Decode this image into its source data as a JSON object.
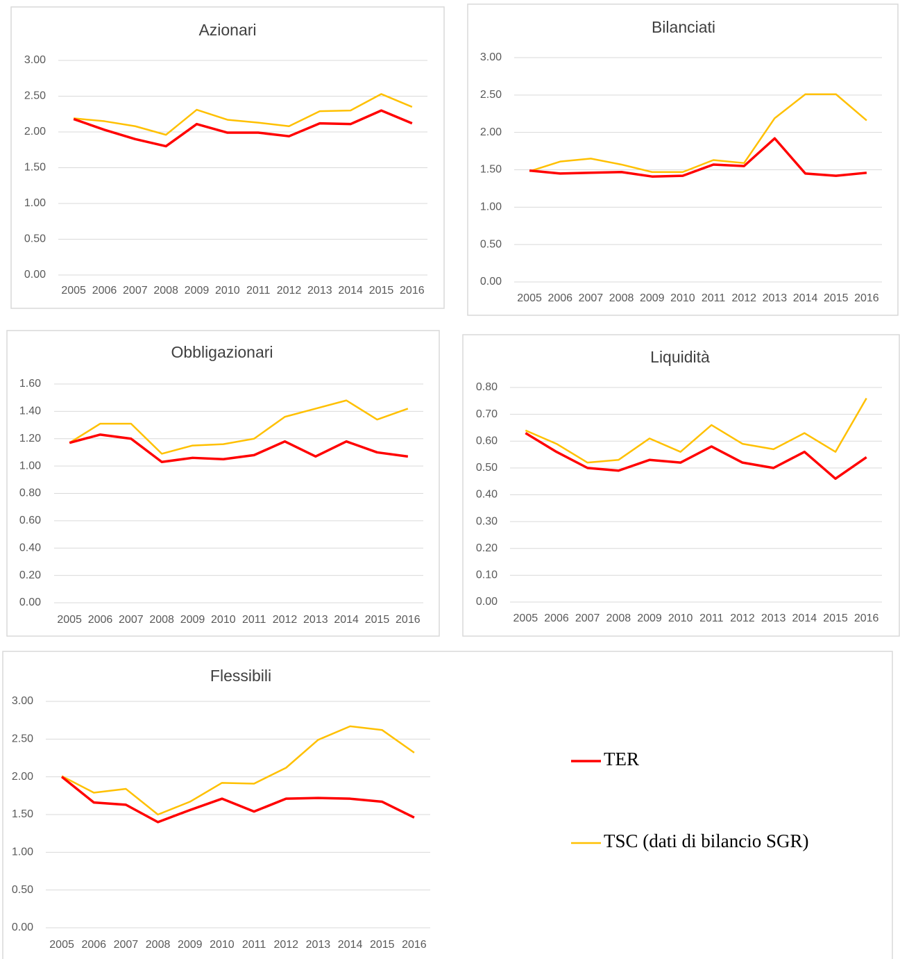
{
  "chart_data": [
    {
      "type": "line",
      "title": "Azionari",
      "categories": [
        "2005",
        "2006",
        "2007",
        "2008",
        "2009",
        "2010",
        "2011",
        "2012",
        "2013",
        "2014",
        "2015",
        "2016"
      ],
      "series": [
        {
          "color": "#ff0000",
          "values": [
            2.18,
            2.03,
            1.9,
            1.8,
            2.11,
            1.99,
            1.99,
            1.94,
            2.12,
            2.11,
            2.3,
            2.12
          ]
        },
        {
          "color": "#ffc000",
          "values": [
            2.19,
            2.15,
            2.08,
            1.96,
            2.31,
            2.17,
            2.13,
            2.08,
            2.29,
            2.3,
            2.53,
            2.35
          ]
        }
      ],
      "ylim": [
        0,
        3
      ],
      "yticks": [
        {
          "value": 0,
          "label": "0.00"
        },
        {
          "value": 0.5,
          "label": "0.50"
        },
        {
          "value": 1,
          "label": "1.00"
        },
        {
          "value": 1.5,
          "label": "1.50"
        },
        {
          "value": 2,
          "label": "2.00"
        },
        {
          "value": 2.5,
          "label": "2.50"
        },
        {
          "value": 3,
          "label": "3.00"
        }
      ],
      "grid": true
    },
    {
      "type": "line",
      "title": "Bilanciati",
      "categories": [
        "2005",
        "2006",
        "2007",
        "2008",
        "2009",
        "2010",
        "2011",
        "2012",
        "2013",
        "2014",
        "2015",
        "2016"
      ],
      "series": [
        {
          "color": "#ff0000",
          "values": [
            1.49,
            1.45,
            1.46,
            1.47,
            1.41,
            1.42,
            1.57,
            1.55,
            1.92,
            1.45,
            1.42,
            1.46
          ]
        },
        {
          "color": "#ffc000",
          "values": [
            1.48,
            1.61,
            1.65,
            1.57,
            1.47,
            1.47,
            1.63,
            1.59,
            2.19,
            2.51,
            2.51,
            2.16
          ]
        }
      ],
      "ylim": [
        0,
        3
      ],
      "yticks": [
        {
          "value": 0,
          "label": "0.00"
        },
        {
          "value": 0.5,
          "label": "0.50"
        },
        {
          "value": 1,
          "label": "1.00"
        },
        {
          "value": 1.5,
          "label": "1.50"
        },
        {
          "value": 2,
          "label": "2.00"
        },
        {
          "value": 2.5,
          "label": "2.50"
        },
        {
          "value": 3,
          "label": "3.00"
        }
      ],
      "grid": true
    },
    {
      "type": "line",
      "title": "Obbligazionari",
      "categories": [
        "2005",
        "2006",
        "2007",
        "2008",
        "2009",
        "2010",
        "2011",
        "2012",
        "2013",
        "2014",
        "2015",
        "2016"
      ],
      "series": [
        {
          "color": "#ff0000",
          "values": [
            1.17,
            1.23,
            1.2,
            1.03,
            1.06,
            1.05,
            1.08,
            1.18,
            1.07,
            1.18,
            1.1,
            1.07
          ]
        },
        {
          "color": "#ffc000",
          "values": [
            1.17,
            1.31,
            1.31,
            1.09,
            1.15,
            1.16,
            1.2,
            1.36,
            1.42,
            1.48,
            1.34,
            1.42
          ]
        }
      ],
      "ylim": [
        0,
        1.6
      ],
      "yticks": [
        {
          "value": 0,
          "label": "0.00"
        },
        {
          "value": 0.2,
          "label": "0.20"
        },
        {
          "value": 0.4,
          "label": "0.40"
        },
        {
          "value": 0.6,
          "label": "0.60"
        },
        {
          "value": 0.8,
          "label": "0.80"
        },
        {
          "value": 1,
          "label": "1.00"
        },
        {
          "value": 1.2,
          "label": "1.20"
        },
        {
          "value": 1.4,
          "label": "1.40"
        },
        {
          "value": 1.6,
          "label": "1.60"
        }
      ],
      "grid": true
    },
    {
      "type": "line",
      "title": "Liquidità",
      "categories": [
        "2005",
        "2006",
        "2007",
        "2008",
        "2009",
        "2010",
        "2011",
        "2012",
        "2013",
        "2014",
        "2015",
        "2016"
      ],
      "series": [
        {
          "color": "#ff0000",
          "values": [
            0.63,
            0.56,
            0.5,
            0.49,
            0.53,
            0.52,
            0.58,
            0.52,
            0.5,
            0.56,
            0.46,
            0.54
          ]
        },
        {
          "color": "#ffc000",
          "values": [
            0.64,
            0.59,
            0.52,
            0.53,
            0.61,
            0.56,
            0.66,
            0.59,
            0.57,
            0.63,
            0.56,
            0.76
          ]
        }
      ],
      "ylim": [
        0,
        0.8
      ],
      "yticks": [
        {
          "value": 0,
          "label": "0.00"
        },
        {
          "value": 0.1,
          "label": "0.10"
        },
        {
          "value": 0.2,
          "label": "0.20"
        },
        {
          "value": 0.3,
          "label": "0.30"
        },
        {
          "value": 0.4,
          "label": "0.40"
        },
        {
          "value": 0.5,
          "label": "0.50"
        },
        {
          "value": 0.6,
          "label": "0.60"
        },
        {
          "value": 0.7,
          "label": "0.70"
        },
        {
          "value": 0.8,
          "label": "0.80"
        }
      ],
      "grid": true
    },
    {
      "type": "line",
      "title": "Flessibili",
      "categories": [
        "2005",
        "2006",
        "2007",
        "2008",
        "2009",
        "2010",
        "2011",
        "2012",
        "2013",
        "2014",
        "2015",
        "2016"
      ],
      "series": [
        {
          "name": "TER",
          "color": "#ff0000",
          "values": [
            2.0,
            1.66,
            1.63,
            1.4,
            1.56,
            1.71,
            1.54,
            1.71,
            1.72,
            1.71,
            1.67,
            1.46
          ]
        },
        {
          "name": "TSC (dati di bilancio SGR)",
          "color": "#ffc000",
          "values": [
            2.01,
            1.79,
            1.84,
            1.5,
            1.67,
            1.92,
            1.91,
            2.12,
            2.49,
            2.67,
            2.62,
            2.32
          ]
        }
      ],
      "ylim": [
        0,
        3
      ],
      "yticks": [
        {
          "value": 0,
          "label": "0.00"
        },
        {
          "value": 0.5,
          "label": "0.50"
        },
        {
          "value": 1,
          "label": "1.00"
        },
        {
          "value": 1.5,
          "label": "1.50"
        },
        {
          "value": 2,
          "label": "2.00"
        },
        {
          "value": 2.5,
          "label": "2.50"
        },
        {
          "value": 3,
          "label": "3.00"
        }
      ],
      "grid": true,
      "legend": "right"
    }
  ]
}
